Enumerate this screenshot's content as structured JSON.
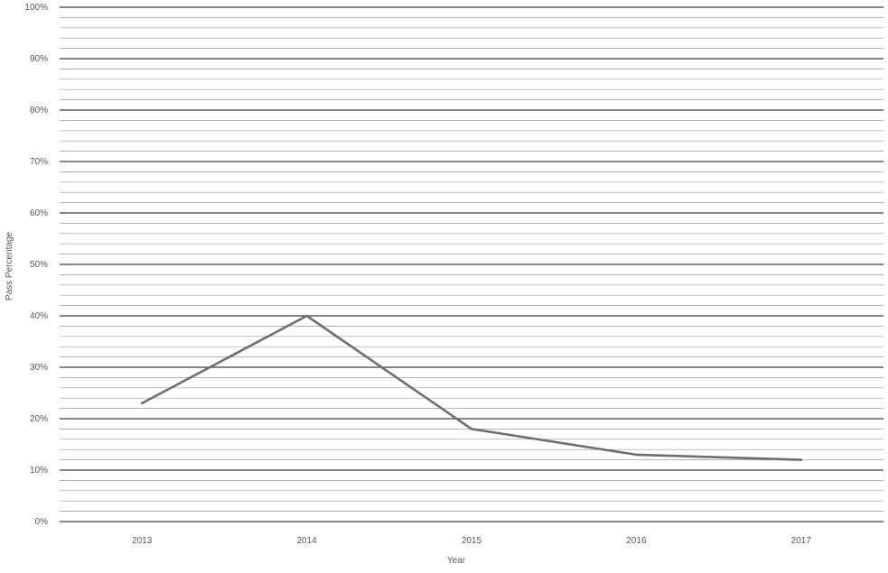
{
  "chart_data": {
    "type": "line",
    "title": "",
    "xlabel": "Year",
    "ylabel": "Pass Percentage",
    "categories": [
      "2013",
      "2014",
      "2015",
      "2016",
      "2017"
    ],
    "series": [
      {
        "values": [
          23,
          40,
          18,
          13,
          12
        ],
        "color": "#6e6e6e"
      }
    ],
    "ylim": [
      0,
      100
    ],
    "yticks": [
      0,
      10,
      20,
      30,
      40,
      50,
      60,
      70,
      80,
      90,
      100
    ],
    "ytick_labels": [
      "0%",
      "10%",
      "20%",
      "30%",
      "40%",
      "50%",
      "60%",
      "70%",
      "80%",
      "90%",
      "100%"
    ],
    "grid": true,
    "grid_color": "#3a3a3a",
    "minor_grid_color": "#9a9a9a"
  }
}
